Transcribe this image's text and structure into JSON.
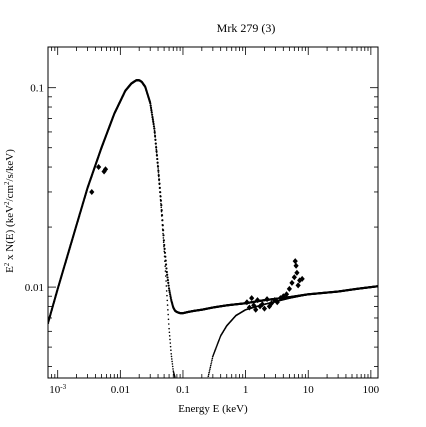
{
  "chart_data": {
    "type": "scatter",
    "title": "Mrk 279 (3)",
    "xlabel": "Energy E (keV)",
    "ylabel": {
      "base": "E",
      "sup1": "2",
      "mid": " x N(E) (keV",
      "sup2": "2",
      "mid2": "/cm",
      "sup3": "2",
      "end": "/s/keV)"
    },
    "x_scale": "log",
    "y_scale": "log",
    "xlim": [
      0.0007,
      130
    ],
    "ylim": [
      0.0035,
      0.16
    ],
    "x_ticks": [
      {
        "value": 0.001,
        "base": "10",
        "exp": "-3"
      },
      {
        "value": 0.01,
        "base": "0.01",
        "exp": ""
      },
      {
        "value": 0.1,
        "base": "0.1",
        "exp": ""
      },
      {
        "value": 1,
        "base": "1",
        "exp": ""
      },
      {
        "value": 10,
        "base": "10",
        "exp": ""
      },
      {
        "value": 100,
        "base": "100",
        "exp": ""
      }
    ],
    "y_ticks": [
      {
        "value": 0.01,
        "label": "0.01"
      },
      {
        "value": 0.1,
        "label": "0.1"
      }
    ],
    "grid": false,
    "legend": "none",
    "series": [
      {
        "kind": "disk-blackbody",
        "x": [
          0.0007,
          0.001,
          0.002,
          0.003,
          0.005,
          0.008,
          0.012,
          0.015,
          0.018,
          0.02,
          0.022,
          0.025,
          0.03,
          0.035,
          0.04,
          0.045,
          0.05,
          0.055,
          0.06,
          0.065,
          0.07,
          0.075
        ],
        "y": [
          0.0066,
          0.0098,
          0.0205,
          0.0315,
          0.05,
          0.074,
          0.0965,
          0.105,
          0.109,
          0.109,
          0.107,
          0.101,
          0.084,
          0.062,
          0.04,
          0.025,
          0.0155,
          0.0095,
          0.0062,
          0.0046,
          0.0038,
          0.0035
        ]
      },
      {
        "kind": "power-law",
        "x": [
          0.25,
          0.3,
          0.4,
          0.5,
          0.7,
          1,
          2,
          5,
          10,
          30,
          60,
          130
        ],
        "y": [
          0.0035,
          0.0045,
          0.0057,
          0.0064,
          0.0072,
          0.0077,
          0.0082,
          0.0088,
          0.0092,
          0.0095,
          0.0098,
          0.0101
        ]
      },
      {
        "kind": "total-model",
        "x": [
          0.0007,
          0.001,
          0.002,
          0.003,
          0.005,
          0.008,
          0.012,
          0.015,
          0.018,
          0.02,
          0.022,
          0.025,
          0.03,
          0.035,
          0.04,
          0.045,
          0.05,
          0.055,
          0.06,
          0.065,
          0.07,
          0.075,
          0.08,
          0.09,
          0.1,
          0.12,
          0.15,
          0.2,
          0.3,
          0.5,
          1,
          2,
          5,
          10,
          30,
          60,
          130
        ],
        "y": [
          0.0066,
          0.0098,
          0.0205,
          0.0315,
          0.05,
          0.074,
          0.0965,
          0.105,
          0.109,
          0.109,
          0.107,
          0.101,
          0.084,
          0.062,
          0.04,
          0.026,
          0.0165,
          0.012,
          0.0098,
          0.0086,
          0.0079,
          0.0076,
          0.0075,
          0.0074,
          0.0074,
          0.0075,
          0.0076,
          0.0077,
          0.0079,
          0.0081,
          0.0083,
          0.0086,
          0.0089,
          0.0092,
          0.0095,
          0.0098,
          0.0101
        ]
      },
      {
        "kind": "data-points",
        "x": [
          0.0035,
          0.0045,
          0.0055,
          0.0058,
          1.05,
          1.15,
          1.25,
          1.35,
          1.45,
          1.55,
          1.7,
          1.85,
          2.0,
          2.2,
          2.4,
          2.6,
          2.9,
          3.2,
          3.6,
          4.0,
          4.5,
          5.0,
          5.5,
          6.0,
          6.2,
          6.4,
          6.6,
          6.9,
          7.3,
          8.0
        ],
        "y": [
          0.03,
          0.04,
          0.038,
          0.039,
          0.0084,
          0.0079,
          0.0088,
          0.0081,
          0.0077,
          0.0086,
          0.008,
          0.0082,
          0.0078,
          0.0087,
          0.008,
          0.0083,
          0.0086,
          0.0084,
          0.0088,
          0.009,
          0.0092,
          0.0098,
          0.0105,
          0.0112,
          0.0135,
          0.0128,
          0.0118,
          0.0102,
          0.0108,
          0.011
        ]
      }
    ]
  }
}
